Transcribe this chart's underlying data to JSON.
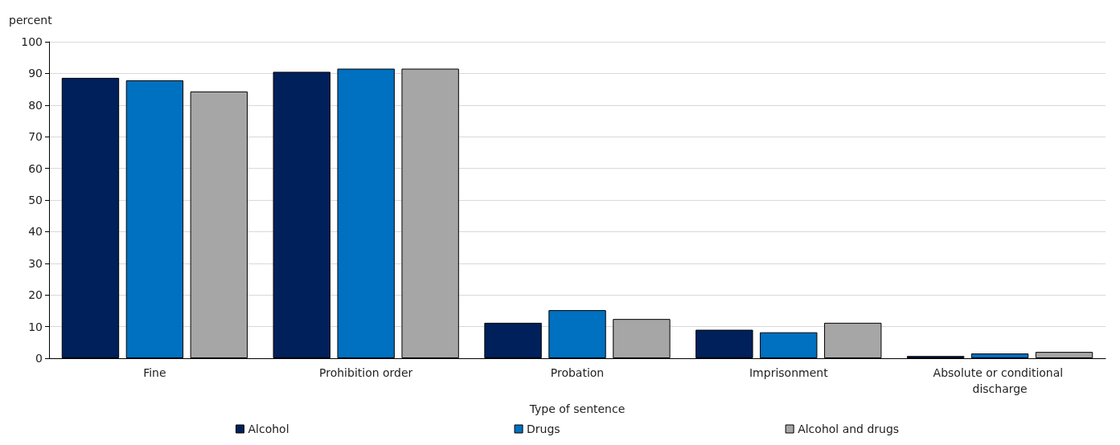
{
  "chart_data": {
    "type": "bar",
    "ylabel": "percent",
    "xlabel": "Type of sentence",
    "categories": [
      "Fine",
      "Prohibition order",
      "Probation",
      "Imprisonment",
      "Absolute or conditional discharge"
    ],
    "series": [
      {
        "name": "Alcohol",
        "color": "#00205b",
        "values": [
          88.6,
          90.5,
          11.2,
          9.0,
          0.7
        ]
      },
      {
        "name": "Drugs",
        "color": "#0070c0",
        "values": [
          87.8,
          91.5,
          15.2,
          8.2,
          1.5
        ]
      },
      {
        "name": "Alcohol and drugs",
        "color": "#a6a6a6",
        "values": [
          84.3,
          91.5,
          12.4,
          11.2,
          2.0
        ]
      }
    ],
    "ylim": [
      0,
      100
    ],
    "yticks": [
      0,
      10,
      20,
      30,
      40,
      50,
      60,
      70,
      80,
      90,
      100
    ],
    "grid": "y",
    "legend": "bottom"
  }
}
